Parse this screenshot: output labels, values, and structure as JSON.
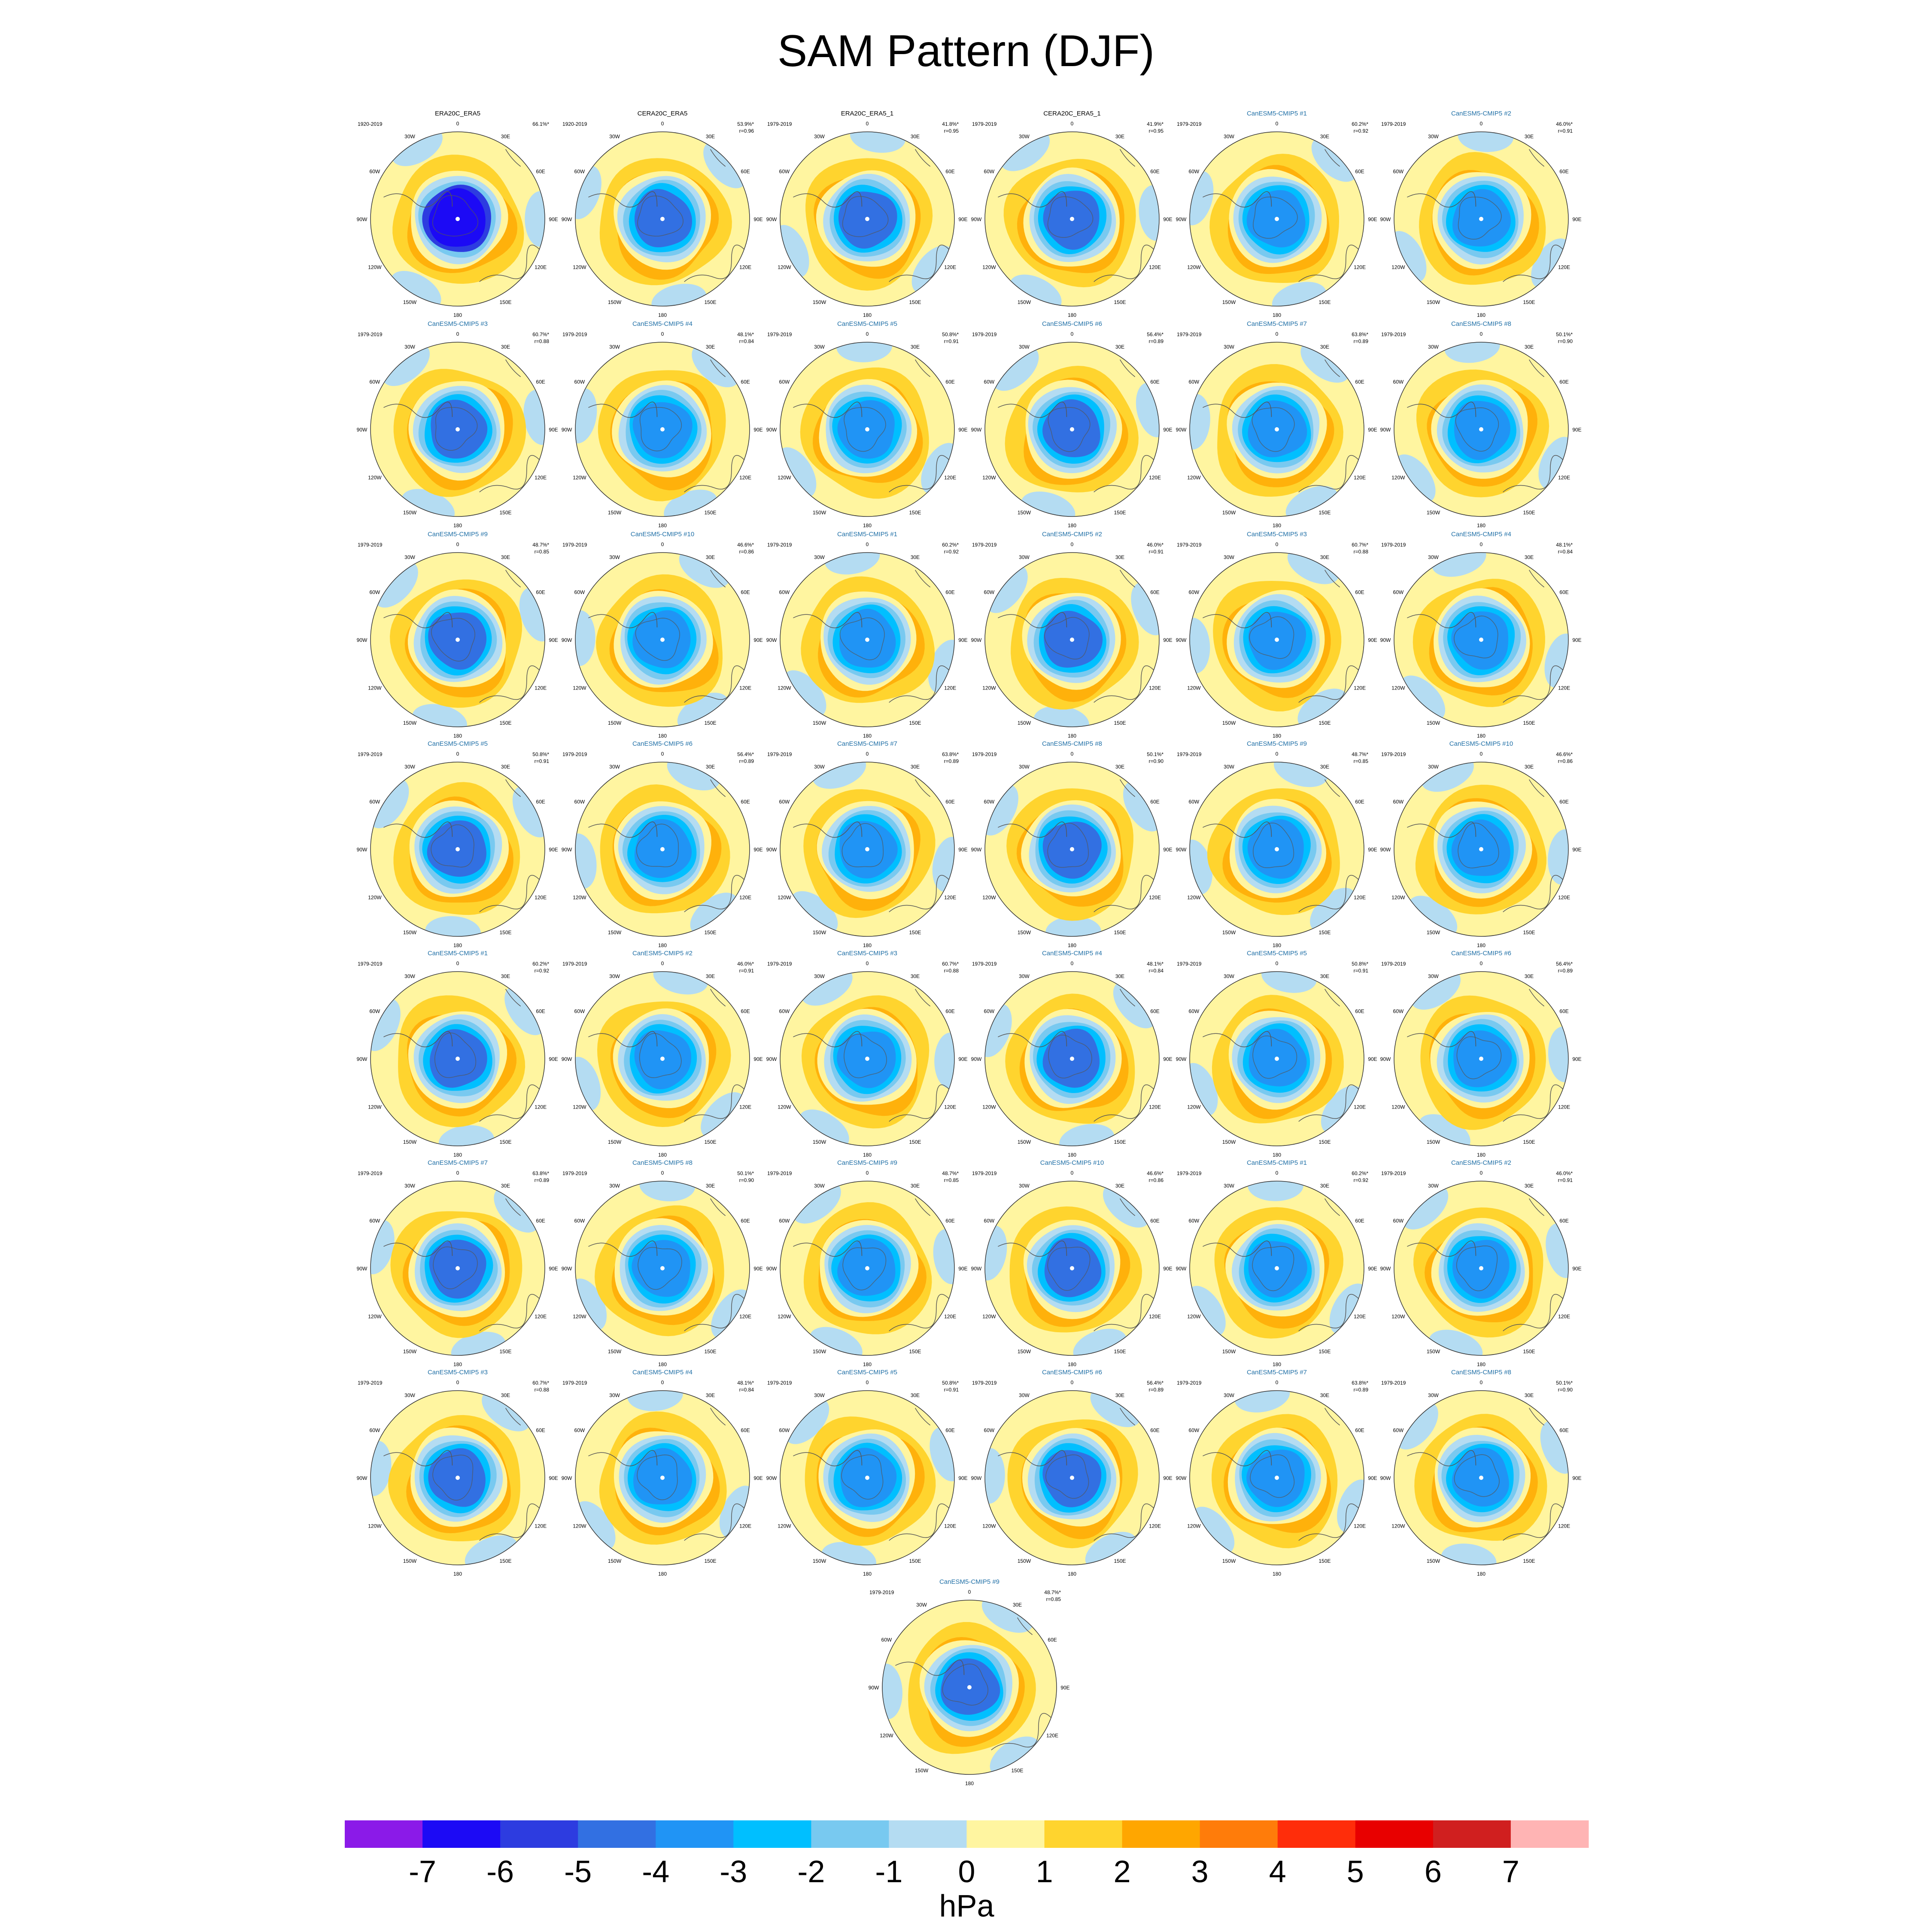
{
  "title": "SAM Pattern (DJF)",
  "longitude_labels": [
    "0",
    "30E",
    "60E",
    "90E",
    "120E",
    "150E",
    "180",
    "150W",
    "120W",
    "90W",
    "60W",
    "30W"
  ],
  "colors": {
    "title_obs": "#000000",
    "title_model": "#1f6fa6",
    "coast": "#555555"
  },
  "chart_data": {
    "type": "heatmap",
    "projection": "south-polar-stereographic",
    "panels": [
      {
        "title": "ERA20C_ERA5",
        "period": "1920-2019",
        "pct": "66.1%*",
        "r": "",
        "observation": true
      },
      {
        "title": "CERA20C_ERA5",
        "period": "1920-2019",
        "pct": "53.9%*",
        "r": "r=0.96",
        "observation": true
      },
      {
        "title": "ERA20C_ERA5_1",
        "period": "1979-2019",
        "pct": "41.8%*",
        "r": "r=0.95",
        "observation": true
      },
      {
        "title": "CERA20C_ERA5_1",
        "period": "1979-2019",
        "pct": "41.9%*",
        "r": "r=0.95",
        "observation": true
      },
      {
        "title": "CanESM5-CMIP5 #1",
        "period": "1979-2019",
        "pct": "60.2%*",
        "r": "r=0.92",
        "observation": false
      },
      {
        "title": "CanESM5-CMIP5 #2",
        "period": "1979-2019",
        "pct": "46.0%*",
        "r": "r=0.91",
        "observation": false
      },
      {
        "title": "CanESM5-CMIP5 #3",
        "period": "1979-2019",
        "pct": "60.7%*",
        "r": "r=0.88",
        "observation": false
      },
      {
        "title": "CanESM5-CMIP5 #4",
        "period": "1979-2019",
        "pct": "48.1%*",
        "r": "r=0.84",
        "observation": false
      },
      {
        "title": "CanESM5-CMIP5 #5",
        "period": "1979-2019",
        "pct": "50.8%*",
        "r": "r=0.91",
        "observation": false
      },
      {
        "title": "CanESM5-CMIP5 #6",
        "period": "1979-2019",
        "pct": "56.4%*",
        "r": "r=0.89",
        "observation": false
      },
      {
        "title": "CanESM5-CMIP5 #7",
        "period": "1979-2019",
        "pct": "63.8%*",
        "r": "r=0.89",
        "observation": false
      },
      {
        "title": "CanESM5-CMIP5 #8",
        "period": "1979-2019",
        "pct": "50.1%*",
        "r": "r=0.90",
        "observation": false
      },
      {
        "title": "CanESM5-CMIP5 #9",
        "period": "1979-2019",
        "pct": "48.7%*",
        "r": "r=0.85",
        "observation": false
      },
      {
        "title": "CanESM5-CMIP5 #10",
        "period": "1979-2019",
        "pct": "46.6%*",
        "r": "r=0.86",
        "observation": false
      },
      {
        "title": "CanESM5-CMIP5 #1",
        "period": "1979-2019",
        "pct": "60.2%*",
        "r": "r=0.92",
        "observation": false
      },
      {
        "title": "CanESM5-CMIP5 #2",
        "period": "1979-2019",
        "pct": "46.0%*",
        "r": "r=0.91",
        "observation": false
      },
      {
        "title": "CanESM5-CMIP5 #3",
        "period": "1979-2019",
        "pct": "60.7%*",
        "r": "r=0.88",
        "observation": false
      },
      {
        "title": "CanESM5-CMIP5 #4",
        "period": "1979-2019",
        "pct": "48.1%*",
        "r": "r=0.84",
        "observation": false
      },
      {
        "title": "CanESM5-CMIP5 #5",
        "period": "1979-2019",
        "pct": "50.8%*",
        "r": "r=0.91",
        "observation": false
      },
      {
        "title": "CanESM5-CMIP5 #6",
        "period": "1979-2019",
        "pct": "56.4%*",
        "r": "r=0.89",
        "observation": false
      },
      {
        "title": "CanESM5-CMIP5 #7",
        "period": "1979-2019",
        "pct": "63.8%*",
        "r": "r=0.89",
        "observation": false
      },
      {
        "title": "CanESM5-CMIP5 #8",
        "period": "1979-2019",
        "pct": "50.1%*",
        "r": "r=0.90",
        "observation": false
      },
      {
        "title": "CanESM5-CMIP5 #9",
        "period": "1979-2019",
        "pct": "48.7%*",
        "r": "r=0.85",
        "observation": false
      },
      {
        "title": "CanESM5-CMIP5 #10",
        "period": "1979-2019",
        "pct": "46.6%*",
        "r": "r=0.86",
        "observation": false
      },
      {
        "title": "CanESM5-CMIP5 #1",
        "period": "1979-2019",
        "pct": "60.2%*",
        "r": "r=0.92",
        "observation": false
      },
      {
        "title": "CanESM5-CMIP5 #2",
        "period": "1979-2019",
        "pct": "46.0%*",
        "r": "r=0.91",
        "observation": false
      },
      {
        "title": "CanESM5-CMIP5 #3",
        "period": "1979-2019",
        "pct": "60.7%*",
        "r": "r=0.88",
        "observation": false
      },
      {
        "title": "CanESM5-CMIP5 #4",
        "period": "1979-2019",
        "pct": "48.1%*",
        "r": "r=0.84",
        "observation": false
      },
      {
        "title": "CanESM5-CMIP5 #5",
        "period": "1979-2019",
        "pct": "50.8%*",
        "r": "r=0.91",
        "observation": false
      },
      {
        "title": "CanESM5-CMIP5 #6",
        "period": "1979-2019",
        "pct": "56.4%*",
        "r": "r=0.89",
        "observation": false
      },
      {
        "title": "CanESM5-CMIP5 #7",
        "period": "1979-2019",
        "pct": "63.8%*",
        "r": "r=0.89",
        "observation": false
      },
      {
        "title": "CanESM5-CMIP5 #8",
        "period": "1979-2019",
        "pct": "50.1%*",
        "r": "r=0.90",
        "observation": false
      },
      {
        "title": "CanESM5-CMIP5 #9",
        "period": "1979-2019",
        "pct": "48.7%*",
        "r": "r=0.85",
        "observation": false
      },
      {
        "title": "CanESM5-CMIP5 #10",
        "period": "1979-2019",
        "pct": "46.6%*",
        "r": "r=0.86",
        "observation": false
      },
      {
        "title": "CanESM5-CMIP5 #1",
        "period": "1979-2019",
        "pct": "60.2%*",
        "r": "r=0.92",
        "observation": false
      },
      {
        "title": "CanESM5-CMIP5 #2",
        "period": "1979-2019",
        "pct": "46.0%*",
        "r": "r=0.91",
        "observation": false
      },
      {
        "title": "CanESM5-CMIP5 #3",
        "period": "1979-2019",
        "pct": "60.7%*",
        "r": "r=0.88",
        "observation": false
      },
      {
        "title": "CanESM5-CMIP5 #4",
        "period": "1979-2019",
        "pct": "48.1%*",
        "r": "r=0.84",
        "observation": false
      },
      {
        "title": "CanESM5-CMIP5 #5",
        "period": "1979-2019",
        "pct": "50.8%*",
        "r": "r=0.91",
        "observation": false
      },
      {
        "title": "CanESM5-CMIP5 #6",
        "period": "1979-2019",
        "pct": "56.4%*",
        "r": "r=0.89",
        "observation": false
      },
      {
        "title": "CanESM5-CMIP5 #7",
        "period": "1979-2019",
        "pct": "63.8%*",
        "r": "r=0.89",
        "observation": false
      },
      {
        "title": "CanESM5-CMIP5 #8",
        "period": "1979-2019",
        "pct": "50.1%*",
        "r": "r=0.90",
        "observation": false
      },
      {
        "title": "CanESM5-CMIP5 #9",
        "period": "1979-2019",
        "pct": "48.7%*",
        "r": "r=0.85",
        "observation": false
      }
    ],
    "colorbar": {
      "label": "hPa",
      "tick_labels": [
        "-7",
        "-6",
        "-5",
        "-4",
        "-3",
        "-2",
        "-1",
        "0",
        "1",
        "2",
        "3",
        "4",
        "5",
        "6",
        "7"
      ],
      "colors": [
        "#8b1ae8",
        "#1c0af5",
        "#2d3ce0",
        "#3270e2",
        "#2094f5",
        "#00bfff",
        "#78c9f0",
        "#b4dcf2",
        "#fff5a0",
        "#ffd42e",
        "#ffa600",
        "#ff7c0a",
        "#ff2d0a",
        "#e80000",
        "#d01f1f",
        "#ffb4b4"
      ]
    }
  }
}
